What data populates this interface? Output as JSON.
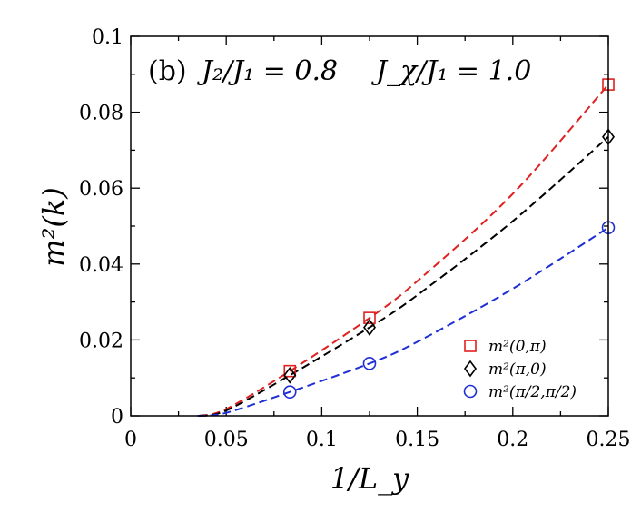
{
  "chart_data": {
    "type": "line",
    "xlabel": "1/L_y",
    "ylabel": "m²(k)",
    "xlim": [
      0,
      0.25
    ],
    "ylim": [
      0,
      0.1
    ],
    "x_ticks": [
      "0",
      "0.05",
      "0.1",
      "0.15",
      "0.2",
      "0.25"
    ],
    "y_ticks": [
      "0",
      "0.02",
      "0.04",
      "0.06",
      "0.08",
      "0.1"
    ],
    "annotation": {
      "panel": "(b)",
      "param1": "J₂/J₁ = 0.8",
      "param2": "J_χ/J₁ = 1.0"
    },
    "legend_position": "bottom-right",
    "series": [
      {
        "name": "m²(0,π)",
        "color": "#e02020",
        "marker": "square",
        "points": [
          [
            0.0833,
            0.0118
          ],
          [
            0.125,
            0.0258
          ],
          [
            0.25,
            0.0873
          ]
        ],
        "fit": [
          [
            0.036,
            0.0
          ],
          [
            0.05,
            0.0018
          ],
          [
            0.0833,
            0.0118
          ],
          [
            0.125,
            0.0258
          ],
          [
            0.15,
            0.0355
          ],
          [
            0.2,
            0.0585
          ],
          [
            0.25,
            0.0873
          ]
        ]
      },
      {
        "name": "m²(π,0)",
        "color": "#000000",
        "marker": "diamond",
        "points": [
          [
            0.0833,
            0.0107
          ],
          [
            0.125,
            0.0233
          ],
          [
            0.25,
            0.0735
          ]
        ],
        "fit": [
          [
            0.036,
            0.0
          ],
          [
            0.05,
            0.0014
          ],
          [
            0.0833,
            0.0107
          ],
          [
            0.125,
            0.0233
          ],
          [
            0.15,
            0.0318
          ],
          [
            0.2,
            0.0513
          ],
          [
            0.25,
            0.0735
          ]
        ]
      },
      {
        "name": "m²(π/2,π/2)",
        "color": "#1f2fd6",
        "marker": "circle",
        "points": [
          [
            0.0833,
            0.0063
          ],
          [
            0.125,
            0.0138
          ],
          [
            0.25,
            0.0496
          ]
        ],
        "fit": [
          [
            0.035,
            0.0
          ],
          [
            0.05,
            0.0008
          ],
          [
            0.0833,
            0.0063
          ],
          [
            0.125,
            0.0138
          ],
          [
            0.15,
            0.0195
          ],
          [
            0.2,
            0.0335
          ],
          [
            0.25,
            0.0496
          ]
        ]
      }
    ]
  }
}
